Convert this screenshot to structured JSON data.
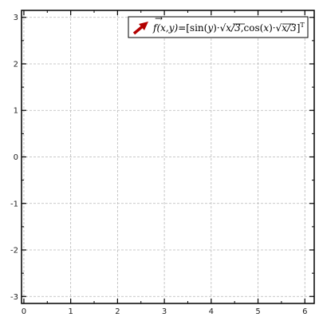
{
  "chart_data": {
    "type": "vector-field",
    "title": "",
    "xlabel": "",
    "ylabel": "",
    "xlim": [
      -0.05,
      6.2
    ],
    "ylim": [
      -3.15,
      3.15
    ],
    "x_ticks": [
      0,
      1,
      2,
      3,
      4,
      5,
      6
    ],
    "y_ticks": [
      -3,
      -2,
      -1,
      0,
      1,
      2,
      3
    ],
    "grid": true,
    "legend": {
      "placement": "top-right",
      "entries": [
        {
          "label": "f(x,y)=[sin(y)·√(x/3), cos(x)·√(x/3)]ᵀ",
          "color": "#b30000",
          "marker": "arrow"
        }
      ]
    },
    "series": []
  }
}
